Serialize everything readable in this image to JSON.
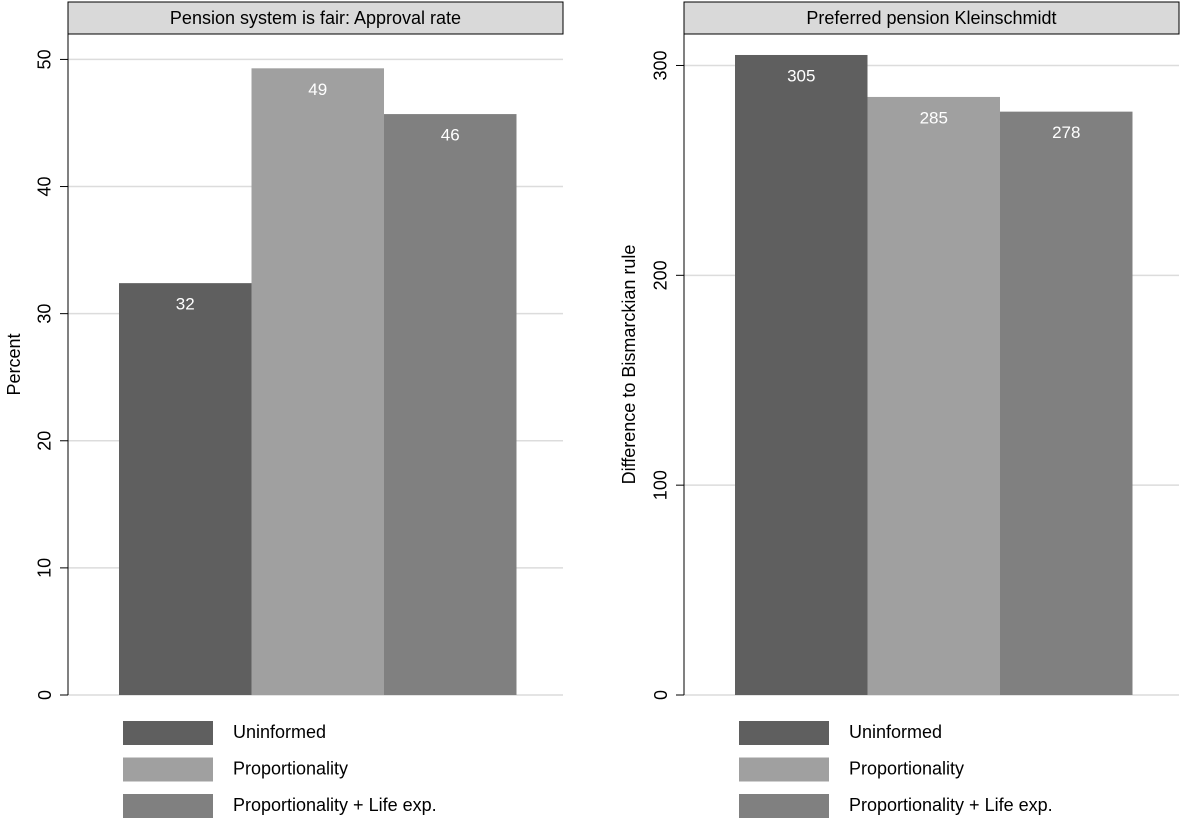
{
  "chart_data": [
    {
      "type": "bar",
      "title": "Pension system is fair: Approval rate",
      "ylabel": "Percent",
      "series": [
        {
          "name": "Uninformed",
          "color": "#5f5f5f",
          "values": [
            32.4
          ],
          "value_labels": [
            "32"
          ]
        },
        {
          "name": "Proportionality",
          "color": "#a0a0a0",
          "values": [
            49.3
          ],
          "value_labels": [
            "49"
          ]
        },
        {
          "name": "Proportionality + Life exp.",
          "color": "#808080",
          "values": [
            45.7
          ],
          "value_labels": [
            "46"
          ]
        }
      ],
      "ylim": [
        0,
        52
      ],
      "yticks": [
        0,
        10,
        20,
        30,
        40,
        50
      ],
      "grid": true
    },
    {
      "type": "bar",
      "title": "Preferred pension Kleinschmidt",
      "ylabel": "Difference to Bismarckian rule",
      "series": [
        {
          "name": "Uninformed",
          "color": "#5f5f5f",
          "values": [
            305
          ]
        },
        {
          "name": "Proportionality",
          "color": "#a0a0a0",
          "values": [
            285
          ]
        },
        {
          "name": "Proportionality + Life exp.",
          "color": "#808080",
          "values": [
            278
          ]
        }
      ],
      "ylim": [
        0,
        315
      ],
      "yticks": [
        0,
        100,
        200,
        300
      ],
      "grid": true
    }
  ]
}
